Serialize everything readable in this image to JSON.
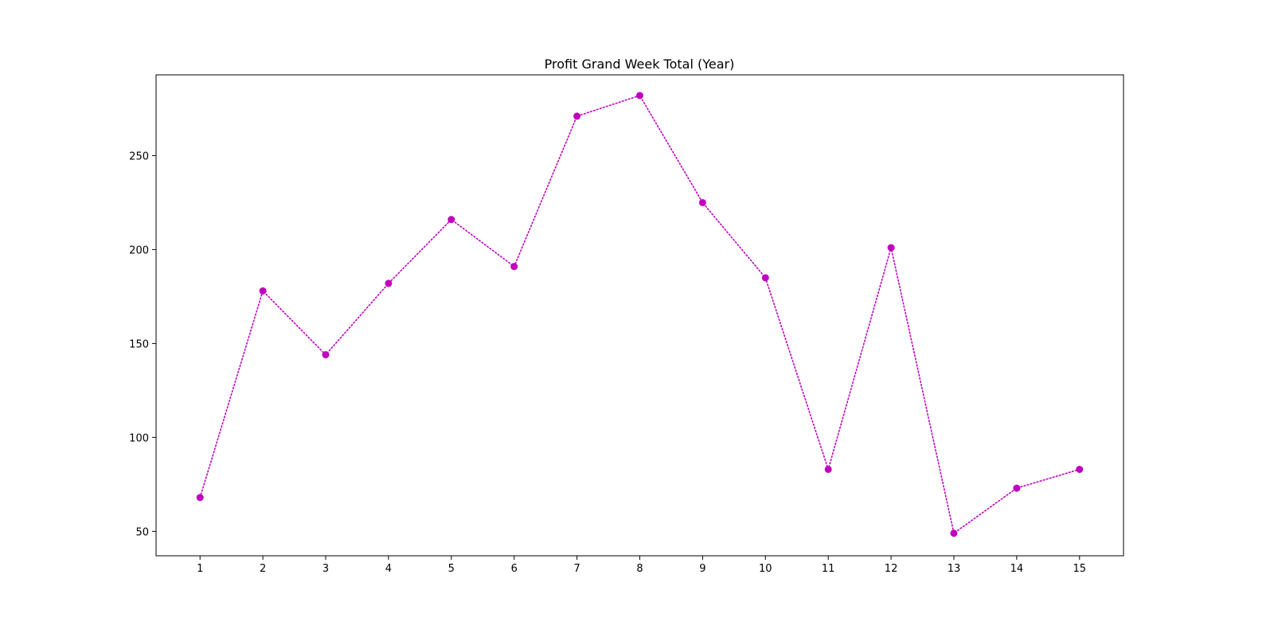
{
  "chart_data": {
    "type": "line",
    "title": "Profit Grand Week Total (Year)",
    "xlabel": "",
    "ylabel": "",
    "x": [
      1,
      2,
      3,
      4,
      5,
      6,
      7,
      8,
      9,
      10,
      11,
      12,
      13,
      14,
      15
    ],
    "x_tick_labels": [
      "1",
      "2",
      "3",
      "4",
      "5",
      "6",
      "7",
      "8",
      "9",
      "10",
      "11",
      "12",
      "13",
      "14",
      "15"
    ],
    "series": [
      {
        "values": [
          68,
          178,
          144,
          182,
          216,
          191,
          271,
          282,
          225,
          185,
          83,
          201,
          49,
          73,
          83
        ]
      }
    ],
    "yticks": [
      50,
      100,
      150,
      200,
      250
    ],
    "y_tick_labels": [
      "50",
      "100",
      "150",
      "200",
      "250"
    ],
    "xlim": [
      0.3,
      15.7
    ],
    "ylim": [
      37,
      293
    ],
    "grid": false,
    "line_style": "dotted",
    "marker": "circle",
    "color": "#bf00bf"
  }
}
